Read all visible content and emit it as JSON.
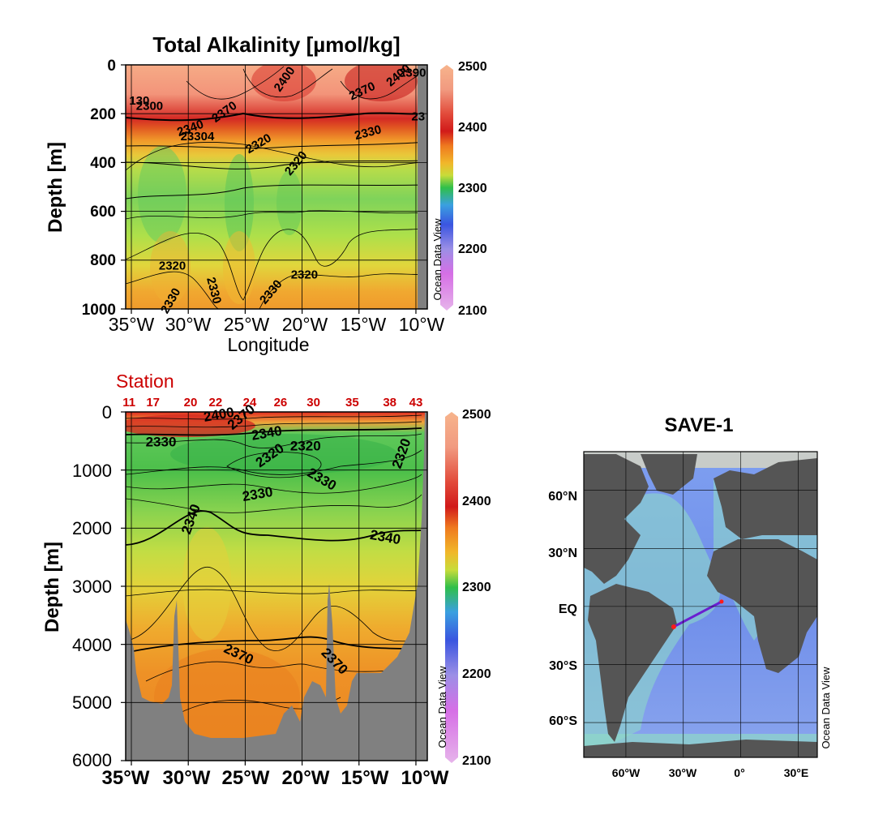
{
  "chart_data": [
    {
      "type": "heatmap",
      "title": "Total Alkalinity [µmol/kg]",
      "xlabel": "Longitude",
      "ylabel": "Depth [m]",
      "xlim": [
        -35.5,
        -9
      ],
      "ylim": [
        0,
        1000
      ],
      "y_ticks": [
        "0",
        "200",
        "400",
        "600",
        "800",
        "1000"
      ],
      "x_ticks": [
        "35°W",
        "30°W",
        "25°W",
        "20°W",
        "15°W",
        "10°W"
      ],
      "colorbar": {
        "ticks": [
          "2500",
          "2400",
          "2300",
          "2200",
          "2100"
        ],
        "range": [
          2100,
          2500
        ]
      },
      "watermark": "Ocean Data View",
      "contour_labels": [
        {
          "text": "2400",
          "x": -21.5,
          "y": 60,
          "angle": -55
        },
        {
          "text": "2370",
          "x": -14.7,
          "y": 110,
          "angle": -25
        },
        {
          "text": "2400",
          "x": -11.5,
          "y": 45,
          "angle": -40
        },
        {
          "text": "2390",
          "x": -10.3,
          "y": 35,
          "angle": 0
        },
        {
          "text": "130",
          "x": -34.3,
          "y": 150,
          "angle": 0
        },
        {
          "text": "2300",
          "x": -33.4,
          "y": 172,
          "angle": 0
        },
        {
          "text": "2370",
          "x": -26.8,
          "y": 195,
          "angle": -35
        },
        {
          "text": "23",
          "x": -9.8,
          "y": 215,
          "angle": 0
        },
        {
          "text": "2340",
          "x": -29.8,
          "y": 262,
          "angle": -20
        },
        {
          "text": "23304",
          "x": -29.2,
          "y": 295,
          "angle": 0
        },
        {
          "text": "2330",
          "x": -14.2,
          "y": 280,
          "angle": -15
        },
        {
          "text": "2320",
          "x": -23.8,
          "y": 325,
          "angle": -30
        },
        {
          "text": "2320",
          "x": -20.5,
          "y": 405,
          "angle": -50
        },
        {
          "text": "2320",
          "x": -31.4,
          "y": 825,
          "angle": 0
        },
        {
          "text": "2320",
          "x": -19.8,
          "y": 862,
          "angle": 0
        },
        {
          "text": "2330",
          "x": -27.8,
          "y": 925,
          "angle": 75
        },
        {
          "text": "2330",
          "x": -22.7,
          "y": 932,
          "angle": -50
        },
        {
          "text": "2330",
          "x": -31.5,
          "y": 968,
          "angle": -60
        }
      ]
    },
    {
      "type": "heatmap",
      "title": "",
      "ylabel": "Depth [m]",
      "xlim": [
        -35.5,
        -9
      ],
      "ylim": [
        0,
        6000
      ],
      "y_ticks": [
        "0",
        "1000",
        "2000",
        "3000",
        "4000",
        "5000",
        "6000"
      ],
      "x_ticks": [
        "35°W",
        "30°W",
        "25°W",
        "20°W",
        "15°W",
        "10°W"
      ],
      "station_label": "Station",
      "stations": [
        {
          "label": "11",
          "lon": -35.2
        },
        {
          "label": "17",
          "lon": -33.1
        },
        {
          "label": "20",
          "lon": -29.8
        },
        {
          "label": "22",
          "lon": -27.6
        },
        {
          "label": "24",
          "lon": -24.6
        },
        {
          "label": "26",
          "lon": -21.9
        },
        {
          "label": "30",
          "lon": -19.0
        },
        {
          "label": "35",
          "lon": -15.6
        },
        {
          "label": "38",
          "lon": -12.3
        },
        {
          "label": "43",
          "lon": -10.0
        }
      ],
      "colorbar": {
        "ticks": [
          "2500",
          "2400",
          "2300",
          "2200",
          "2100"
        ],
        "range": [
          2100,
          2500
        ]
      },
      "watermark": "Ocean Data View",
      "contour_labels": [
        {
          "text": "2400",
          "x": -27.3,
          "y": 60,
          "angle": -10
        },
        {
          "text": "2370",
          "x": -25.3,
          "y": 100,
          "angle": -40
        },
        {
          "text": "2340",
          "x": -23.1,
          "y": 380,
          "angle": -10
        },
        {
          "text": "2330",
          "x": -32.4,
          "y": 530,
          "angle": 0
        },
        {
          "text": "2320",
          "x": -22.8,
          "y": 760,
          "angle": -35
        },
        {
          "text": "2320",
          "x": -19.7,
          "y": 600,
          "angle": 0
        },
        {
          "text": "2320",
          "x": -11.2,
          "y": 720,
          "angle": -70
        },
        {
          "text": "2330",
          "x": -18.3,
          "y": 1170,
          "angle": 30
        },
        {
          "text": "2330",
          "x": -23.9,
          "y": 1430,
          "angle": -10
        },
        {
          "text": "2340",
          "x": -29.7,
          "y": 1850,
          "angle": -70
        },
        {
          "text": "2340",
          "x": -12.7,
          "y": 2170,
          "angle": 10
        },
        {
          "text": "2370",
          "x": -25.6,
          "y": 4180,
          "angle": 25
        },
        {
          "text": "2370",
          "x": -17.2,
          "y": 4300,
          "angle": 45
        }
      ]
    },
    {
      "type": "map",
      "title": "SAVE-1",
      "x_ticks": [
        "60°W",
        "30°W",
        "0°",
        "30°E"
      ],
      "y_ticks": [
        "60°N",
        "30°N",
        "EQ",
        "30°S",
        "60°S"
      ],
      "xlim": [
        -82,
        40
      ],
      "ylim": [
        -78,
        80
      ],
      "watermark": "Ocean Data View",
      "cruise_track": {
        "start": [
          -35,
          -10.5
        ],
        "end": [
          -10,
          2.5
        ]
      }
    }
  ],
  "colors": {
    "land": "#808080",
    "title": "#000000",
    "station": "#cc0000",
    "track": "#6a1fd0",
    "track_end": "#ff1a1a"
  }
}
